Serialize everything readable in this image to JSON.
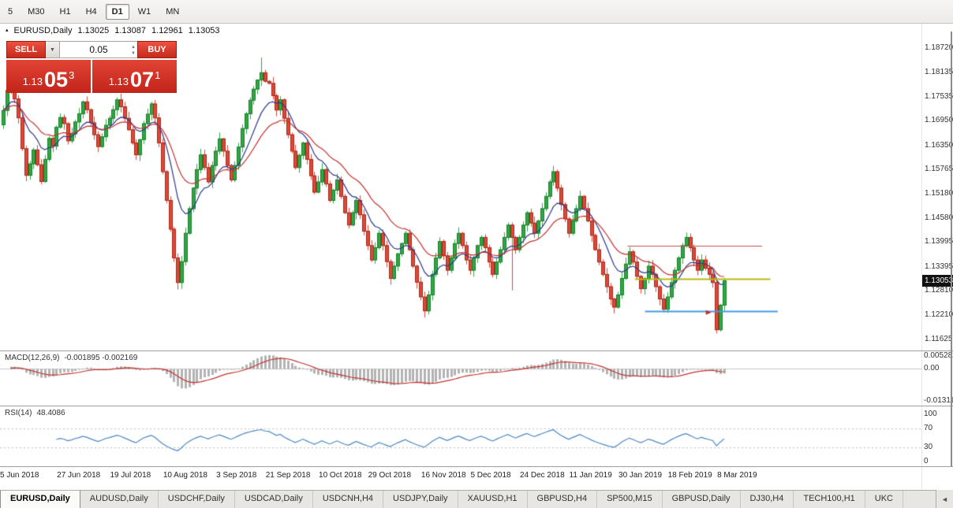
{
  "toolbar": {
    "timeframe_buttons": [
      {
        "label": "5",
        "active": false
      },
      {
        "label": "M30",
        "active": false
      },
      {
        "label": "H1",
        "active": false
      },
      {
        "label": "H4",
        "active": false
      },
      {
        "label": "D1",
        "active": true
      },
      {
        "label": "W1",
        "active": false
      },
      {
        "label": "MN",
        "active": false
      }
    ]
  },
  "icons": {
    "marker": "▴",
    "volume_dropdown": "▼",
    "spinner_up": "▲",
    "spinner_down": "▼",
    "scroll_left": "◄"
  },
  "quote_header": {
    "symbol": "EURUSD,Daily",
    "open": "1.13025",
    "high": "1.13087",
    "low": "1.12961",
    "close": "1.13053"
  },
  "trade_panel": {
    "sell_label": "SELL",
    "buy_label": "BUY",
    "volume": "0.05",
    "sell_price": {
      "base": "1.13",
      "pips": "05",
      "pipette": "3"
    },
    "buy_price": {
      "base": "1.13",
      "pips": "07",
      "pipette": "1"
    }
  },
  "price_axis": {
    "tick_labels": [
      "1.18720",
      "1.18135",
      "1.17535",
      "1.16950",
      "1.16350",
      "1.15765",
      "1.15180",
      "1.14580",
      "1.13995",
      "1.13395",
      "1.12810",
      "1.12210",
      "1.11625"
    ],
    "current_price": {
      "label": "1.13053",
      "value": 1.13053
    }
  },
  "date_axis": {
    "labels": [
      {
        "label": "5 Jun 2018",
        "index": 0
      },
      {
        "label": "27 Jun 2018",
        "index": 15
      },
      {
        "label": "19 Jul 2018",
        "index": 29
      },
      {
        "label": "10 Aug 2018",
        "index": 43
      },
      {
        "label": "3 Sep 2018",
        "index": 57
      },
      {
        "label": "21 Sep 2018",
        "index": 70
      },
      {
        "label": "10 Oct 2018",
        "index": 84
      },
      {
        "label": "29 Oct 2018",
        "index": 97
      },
      {
        "label": "16 Nov 2018",
        "index": 111
      },
      {
        "label": "5 Dec 2018",
        "index": 124
      },
      {
        "label": "24 Dec 2018",
        "index": 137
      },
      {
        "label": "11 Jan 2019",
        "index": 150
      },
      {
        "label": "30 Jan 2019",
        "index": 163
      },
      {
        "label": "18 Feb 2019",
        "index": 176
      },
      {
        "label": "8 Mar 2019",
        "index": 189
      }
    ]
  },
  "macd_panel": {
    "title": "MACD(12,26,9)",
    "values": "-0.001895 -0.002169",
    "axis": [
      {
        "label": "0.005282",
        "value": 0.005282
      },
      {
        "label": "0.00",
        "value": 0
      },
      {
        "label": "-0.013111",
        "value": -0.013111
      }
    ]
  },
  "rsi_panel": {
    "title": "RSI(14)",
    "value": "48.4086",
    "axis": [
      {
        "label": "100",
        "value": 100
      },
      {
        "label": "70",
        "value": 70
      },
      {
        "label": "30",
        "value": 30
      },
      {
        "label": "0",
        "value": 0
      }
    ]
  },
  "tabbar": {
    "tabs": [
      {
        "label": "EURUSD,Daily",
        "active": true
      },
      {
        "label": "AUDUSD,Daily",
        "active": false
      },
      {
        "label": "USDCHF,Daily",
        "active": false
      },
      {
        "label": "USDCAD,Daily",
        "active": false
      },
      {
        "label": "USDCNH,H4",
        "active": false
      },
      {
        "label": "USDJPY,Daily",
        "active": false
      },
      {
        "label": "XAUUSD,H1",
        "active": false
      },
      {
        "label": "GBPUSD,H4",
        "active": false
      },
      {
        "label": "SP500,M15",
        "active": false
      },
      {
        "label": "GBPUSD,Daily",
        "active": false
      },
      {
        "label": "DJ30,H4",
        "active": false
      },
      {
        "label": "TECH100,H1",
        "active": false
      },
      {
        "label": "UKC",
        "active": false
      }
    ]
  },
  "colors": {
    "bull": "#2ea843",
    "bull_dark": "#1b7d2c",
    "bear": "#de4937",
    "bear_dark": "#a8271a",
    "ma_fast": "#2b3990",
    "ma_slow": "#c4322e",
    "macd_hist": "#b3b3b3",
    "macd_signal": "#c4322e",
    "rsi": "#4b87c7",
    "badge_bg": "#111111",
    "badge_fg": "#ffffff"
  },
  "chart_data": {
    "type": "candlestick",
    "symbol": "EURUSD",
    "timeframe": "Daily",
    "last_ohlc": {
      "open": 1.13025,
      "high": 1.13087,
      "low": 1.12961,
      "close": 1.13053
    },
    "ylim": [
      1.11625,
      1.1872
    ],
    "y_ticks": [
      1.1872,
      1.18135,
      1.17535,
      1.1695,
      1.1635,
      1.15765,
      1.1518,
      1.1458,
      1.13995,
      1.13395,
      1.1281,
      1.1221,
      1.11625
    ],
    "first_open": 1.1685,
    "candle_area_frac": 0.79,
    "closes": [
      1.172,
      1.1769,
      1.1793,
      1.1748,
      1.1702,
      1.1627,
      1.1562,
      1.159,
      1.1624,
      1.1588,
      1.1547,
      1.1601,
      1.1652,
      1.1633,
      1.1679,
      1.1703,
      1.1688,
      1.1646,
      1.1663,
      1.1692,
      1.1712,
      1.1741,
      1.1722,
      1.169,
      1.1661,
      1.1632,
      1.1656,
      1.1684,
      1.1701,
      1.1722,
      1.1746,
      1.1729,
      1.1701,
      1.1673,
      1.1641,
      1.1612,
      1.1649,
      1.1688,
      1.1711,
      1.1736,
      1.1702,
      1.1641,
      1.1571,
      1.1501,
      1.1431,
      1.1361,
      1.1301,
      1.1352,
      1.1421,
      1.1481,
      1.1531,
      1.1576,
      1.1612,
      1.1581,
      1.1546,
      1.1586,
      1.1621,
      1.1651,
      1.1621,
      1.1586,
      1.1551,
      1.1586,
      1.1631,
      1.1676,
      1.1712,
      1.1745,
      1.1772,
      1.1794,
      1.1812,
      1.1791,
      1.1786,
      1.1756,
      1.1721,
      1.1746,
      1.1701,
      1.1661,
      1.1621,
      1.1581,
      1.1611,
      1.1641,
      1.1601,
      1.1561,
      1.1521,
      1.1546,
      1.1576,
      1.1541,
      1.1501,
      1.1526,
      1.1551,
      1.1511,
      1.1471,
      1.1441,
      1.1471,
      1.1501,
      1.1466,
      1.1426,
      1.1391,
      1.1356,
      1.1386,
      1.1421,
      1.1391,
      1.1352,
      1.1311,
      1.1341,
      1.1371,
      1.1396,
      1.1421,
      1.1381,
      1.1341,
      1.1302,
      1.1266,
      1.1232,
      1.1271,
      1.1321,
      1.1361,
      1.1401,
      1.1366,
      1.1331,
      1.1361,
      1.1396,
      1.1421,
      1.1391,
      1.1356,
      1.1331,
      1.1361,
      1.1391,
      1.1411,
      1.1386,
      1.1351,
      1.1321,
      1.1351,
      1.1381,
      1.1411,
      1.1441,
      1.1411,
      1.1381,
      1.1411,
      1.1441,
      1.1471,
      1.1446,
      1.1421,
      1.1451,
      1.1481,
      1.1511,
      1.1546,
      1.1571,
      1.1531,
      1.1491,
      1.1456,
      1.1421,
      1.1451,
      1.1481,
      1.1511,
      1.1481,
      1.1451,
      1.1416,
      1.1381,
      1.1351,
      1.1321,
      1.1291,
      1.1261,
      1.1241,
      1.1271,
      1.1311,
      1.1346,
      1.1376,
      1.1351,
      1.1316,
      1.1286,
      1.1311,
      1.1341,
      1.1321,
      1.1291,
      1.1261,
      1.1236,
      1.1266,
      1.1301,
      1.1331,
      1.1361,
      1.1391,
      1.1411,
      1.1386,
      1.1356,
      1.1331,
      1.1356,
      1.1336,
      1.1321,
      1.1301,
      1.1186,
      1.1246,
      1.13053
    ],
    "spike_highs": {
      "68": 1.1849
    },
    "spike_lows": {
      "46": 1.1284,
      "111": 1.1216,
      "134": 1.1282,
      "188": 1.1177
    },
    "moving_averages": [
      {
        "type": "ema",
        "period": 10,
        "color_key": "ma_fast"
      },
      {
        "type": "ema",
        "period": 21,
        "color_key": "ma_slow"
      }
    ],
    "hlines": [
      {
        "price": 1.139,
        "x1_frac": 0.681,
        "x2_frac": 0.827,
        "color": "#c94b4b",
        "width": 1
      },
      {
        "price": 1.131,
        "x1_frac": 0.689,
        "x2_frac": 0.836,
        "color": "#b9b912",
        "width": 2
      },
      {
        "price": 1.1232,
        "x1_frac": 0.7,
        "x2_frac": 0.844,
        "color": "#4399e1",
        "width": 2
      }
    ],
    "arrow_marker": {
      "index": 186,
      "price": 1.1228,
      "color": "#cc2a2a"
    },
    "indicators": {
      "macd": {
        "fast": 12,
        "slow": 26,
        "signal": 9,
        "current_macd": -0.001895,
        "current_signal": -0.002169,
        "axis_range": [
          -0.013111,
          0.005282
        ]
      },
      "rsi": {
        "period": 14,
        "current": 48.4086,
        "range": [
          0,
          100
        ],
        "levels": [
          70,
          30
        ]
      }
    }
  }
}
